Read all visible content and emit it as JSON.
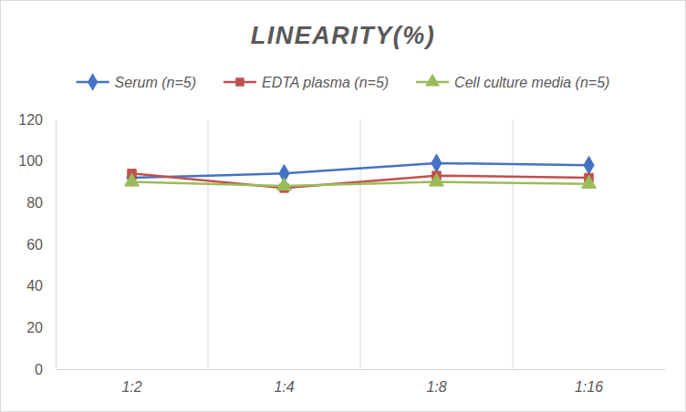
{
  "chart_data": {
    "type": "line",
    "title": "LINEARITY(%)",
    "categories": [
      "1:2",
      "1:4",
      "1:8",
      "1:16"
    ],
    "series": [
      {
        "name": "Serum (n=5)",
        "color": "#4472c4",
        "marker": "diamond",
        "values": [
          92,
          94,
          99,
          98
        ]
      },
      {
        "name": "EDTA plasma (n=5)",
        "color": "#c0504d",
        "marker": "square",
        "values": [
          94,
          87,
          93,
          92
        ]
      },
      {
        "name": "Cell culture media (n=5)",
        "color": "#9bbb59",
        "marker": "triangle",
        "values": [
          90,
          88,
          90,
          89
        ]
      }
    ],
    "ylim": [
      0,
      120
    ],
    "yticks": [
      0,
      20,
      40,
      60,
      80,
      100,
      120
    ],
    "grid": true,
    "legend": "top"
  }
}
